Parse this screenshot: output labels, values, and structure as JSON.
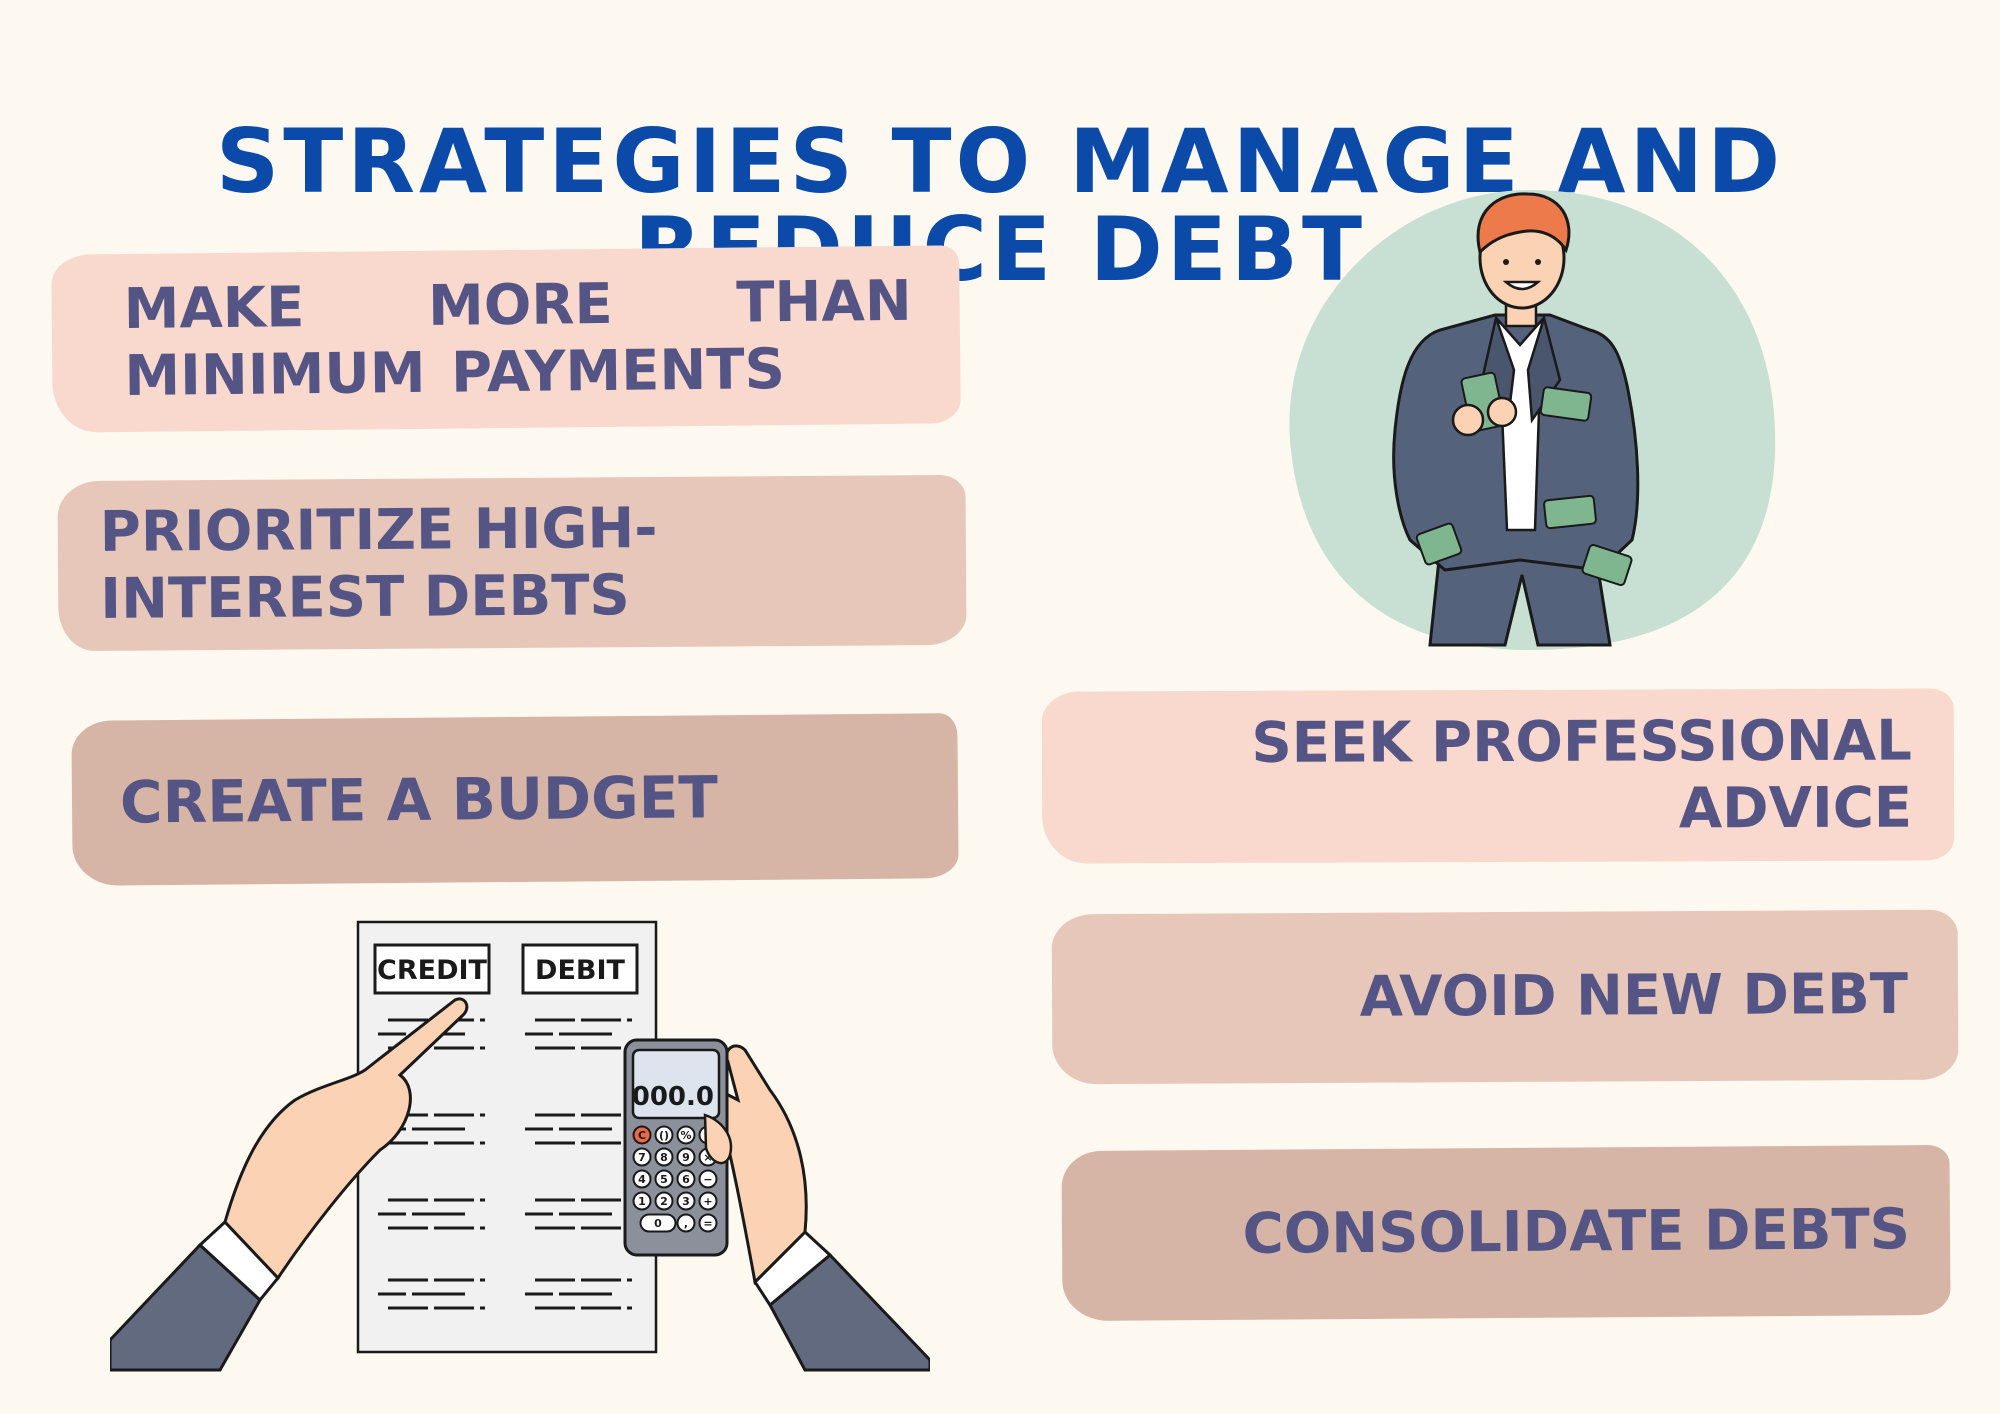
{
  "title": "STRATEGIES TO MANAGE AND REDUCE DEBT",
  "strategies": {
    "s1": "MAKE MORE THAN MINIMUM PAYMENTS",
    "s2": "PRIORITIZE HIGH-INTEREST DEBTS",
    "s3": "CREATE A BUDGET",
    "s4": "SEEK PROFESSIONAL ADVICE",
    "s5": "AVOID NEW DEBT",
    "s6": "CONSOLIDATE DEBTS"
  },
  "ledger": {
    "credit_label": "CREDIT",
    "debit_label": "DEBIT"
  },
  "calculator": {
    "display": "000.0",
    "keys": [
      "C",
      "()",
      "%",
      "÷",
      "7",
      "8",
      "9",
      "×",
      "4",
      "5",
      "6",
      "−",
      "1",
      "2",
      "3",
      "+",
      "0",
      ",",
      "="
    ]
  },
  "colors": {
    "title": "#0b4aa8",
    "text": "#555585",
    "card_light": "#f9d9cd",
    "card_mid": "#e7c7ba",
    "card_dark": "#d6b5a6",
    "background": "#fdf9f0",
    "circle": "#c8e0d3"
  }
}
